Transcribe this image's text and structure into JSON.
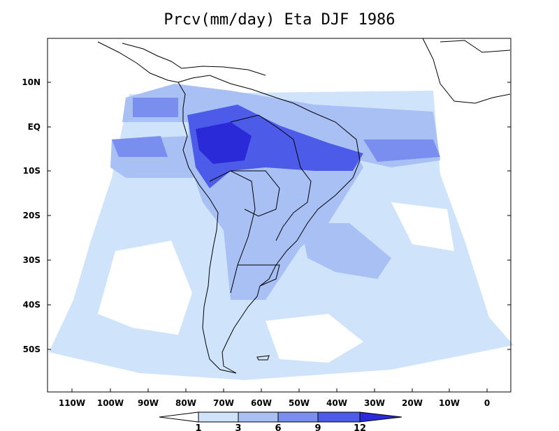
{
  "title": "Prcv(mm/day) Eta DJF 1986",
  "axes": {
    "x_ticks": [
      "110W",
      "100W",
      "90W",
      "80W",
      "70W",
      "60W",
      "50W",
      "40W",
      "30W",
      "20W",
      "10W",
      "0"
    ],
    "y_ticks": [
      "10N",
      "EQ",
      "10S",
      "20S",
      "30S",
      "40S",
      "50S"
    ]
  },
  "colorbar": {
    "levels": [
      "1",
      "3",
      "6",
      "9",
      "12"
    ],
    "colors": [
      "#ffffff",
      "#cfe4fb",
      "#a8c0f4",
      "#7a8eef",
      "#4c5ce8",
      "#2a2ad8"
    ]
  },
  "colors": {
    "lightest": "#cfe4fb",
    "light": "#a8c0f4",
    "mid": "#7a8eef",
    "dark": "#4c5ce8",
    "darkest": "#2a2ad8",
    "coast": "#000000"
  }
}
